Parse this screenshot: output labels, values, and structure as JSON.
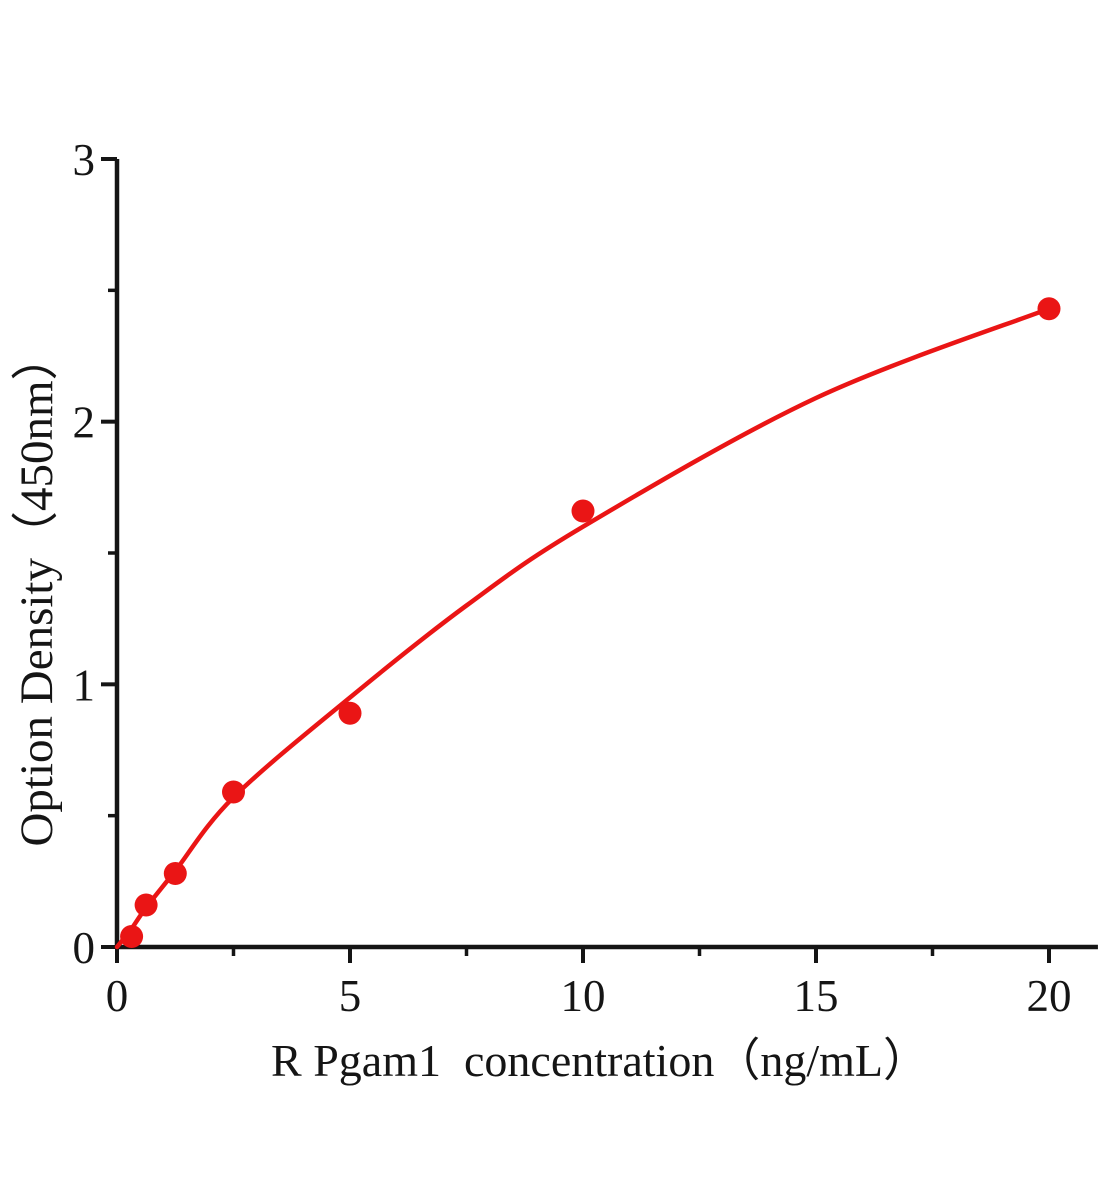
{
  "figure": {
    "background": "#ffffff"
  },
  "chart_data": {
    "type": "scatter",
    "title": "",
    "xlabel": "R Pgam1  concentration（ng/mL）",
    "ylabel": "Option Density（450nm）",
    "x": [
      0.3125,
      0.625,
      1.25,
      2.5,
      5,
      10,
      20
    ],
    "y": [
      0.04,
      0.16,
      0.28,
      0.59,
      0.89,
      1.66,
      2.43
    ],
    "curve_points": [
      [
        0,
        0
      ],
      [
        0.3125,
        0.07
      ],
      [
        0.625,
        0.15
      ],
      [
        1.25,
        0.29
      ],
      [
        2.5,
        0.57
      ],
      [
        5,
        0.95
      ],
      [
        7.5,
        1.3
      ],
      [
        10,
        1.6
      ],
      [
        15,
        2.09
      ],
      [
        20,
        2.43
      ]
    ],
    "xlim": [
      0,
      21.05
    ],
    "ylim": [
      0,
      3
    ],
    "x_major_ticks": [
      0,
      5,
      10,
      15,
      20
    ],
    "x_minor_ticks": [
      2.5,
      7.5,
      12.5,
      17.5
    ],
    "y_major_ticks": [
      0,
      1,
      2,
      3
    ],
    "y_minor_ticks": [
      0.5,
      1.5,
      2.5
    ],
    "grid": false,
    "legend": "none",
    "colors": {
      "curve": "#ea1515",
      "point": "#ea1515",
      "axis": "#151515",
      "text": "#151515"
    }
  }
}
